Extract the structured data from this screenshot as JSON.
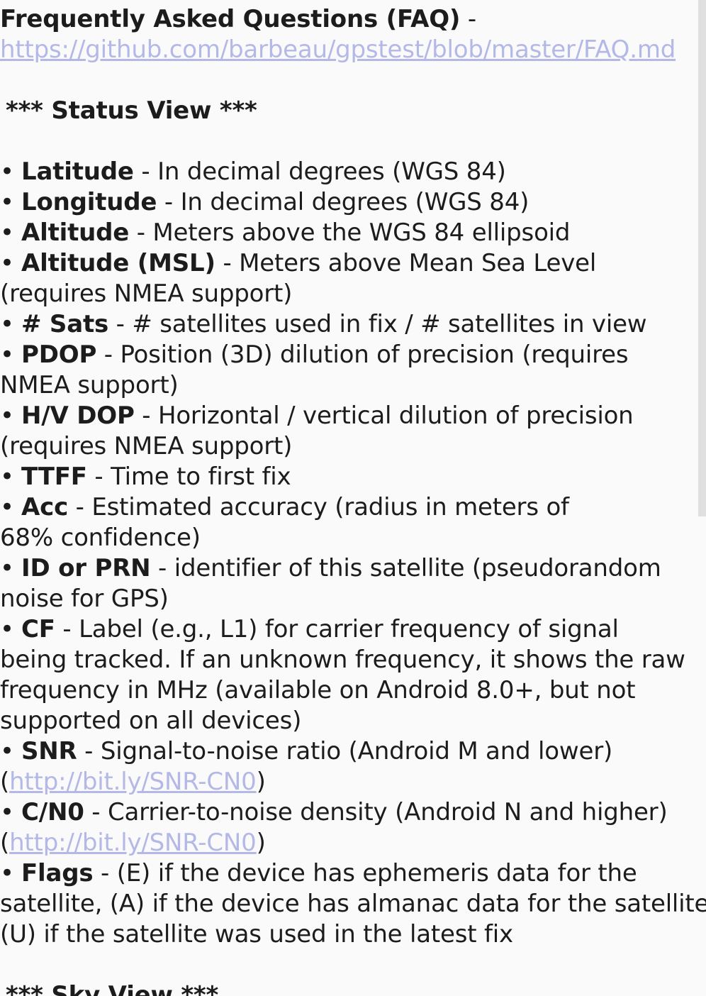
{
  "faq": {
    "title": "Frequently Asked Questions (FAQ)",
    "separator": " -",
    "url": "https://github.com/barbeau/gpstest/blob/master/FAQ.md"
  },
  "status_view": {
    "heading": "*** Status View ***",
    "items": [
      {
        "term": "Latitude",
        "desc": " - In decimal degrees (WGS 84)"
      },
      {
        "term": "Longitude",
        "desc": " - In decimal degrees (WGS 84)"
      },
      {
        "term": "Altitude",
        "desc": " - Meters above the WGS 84 ellipsoid"
      },
      {
        "term": "Altitude (MSL)",
        "desc": " - Meters above Mean Sea Level",
        "cont": "(requires NMEA support)"
      },
      {
        "term": "# Sats",
        "desc": " - # satellites used in fix / # satellites in view"
      },
      {
        "term": "PDOP",
        "desc": " - Position (3D) dilution of precision (requires",
        "cont": "NMEA support)"
      },
      {
        "term": "H/V DOP",
        "desc": " - Horizontal / vertical dilution of precision",
        "cont": "(requires NMEA support)"
      },
      {
        "term": "TTFF",
        "desc": " - Time to first fix"
      },
      {
        "term": "Acc",
        "desc": " - Estimated accuracy (radius in meters of",
        "cont": "68% confidence)"
      },
      {
        "term": "ID or PRN",
        "desc": " - identifier of this satellite (pseudorandom",
        "cont": "noise for GPS)"
      },
      {
        "term": "CF",
        "desc": " - Label (e.g., L1) for carrier frequency of signal",
        "cont1": "being tracked. If an unknown frequency, it shows the raw",
        "cont2": "frequency in MHz (available on Android 8.0+, but not",
        "cont3": "supported on all devices)"
      },
      {
        "term": "SNR",
        "desc": " - Signal-to-noise ratio (Android M and lower)",
        "link": "http://bit.ly/SNR-CN0"
      },
      {
        "term": "C/N0",
        "desc": " - Carrier-to-noise density (Android N and higher)",
        "link": "http://bit.ly/SNR-CN0"
      },
      {
        "term": "Flags",
        "desc": " - (E) if the device has ephemeris data for the",
        "cont1": "satellite, (A) if the device has almanac data for the satellite,",
        "cont2": "(U) if the satellite was used in the latest fix"
      }
    ]
  },
  "sky_view": {
    "heading": "*** Sky View ***"
  },
  "bullet": "•",
  "paren_open": "(",
  "paren_close": ")",
  "colors": {
    "background": "#fafafa",
    "text": "#1c1c1c",
    "link": "#b4b8e6",
    "scrollbar": "#e0e0e0"
  }
}
